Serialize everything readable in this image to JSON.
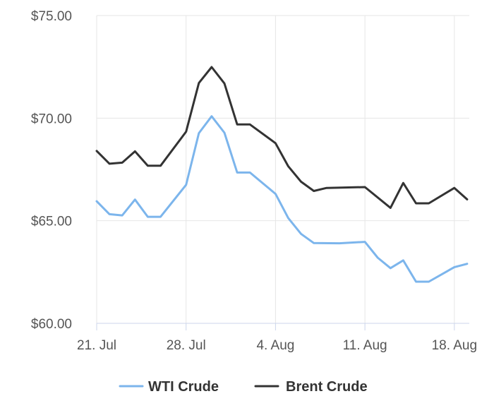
{
  "chart_data": {
    "type": "line",
    "title": "",
    "xlabel": "",
    "ylabel": "",
    "ylim": [
      60,
      75
    ],
    "y_ticks": [
      60,
      65,
      70,
      75
    ],
    "y_tick_labels": [
      "$60.00",
      "$65.00",
      "$70.00",
      "$75.00"
    ],
    "x_ticks": [
      "2023-07-21",
      "2023-07-28",
      "2023-08-04",
      "2023-08-11",
      "2023-08-18"
    ],
    "x_tick_labels": [
      "21. Jul",
      "28. Jul",
      "4. Aug",
      "11. Aug",
      "18. Aug"
    ],
    "grid": true,
    "legend_position": "bottom",
    "series": [
      {
        "name": "WTI Crude",
        "color": "#7cb5ec",
        "points": [
          {
            "x": "2023-07-21",
            "y": 65.95
          },
          {
            "x": "2023-07-22",
            "y": 65.32
          },
          {
            "x": "2023-07-23",
            "y": 65.26
          },
          {
            "x": "2023-07-24",
            "y": 66.03
          },
          {
            "x": "2023-07-25",
            "y": 65.19
          },
          {
            "x": "2023-07-26",
            "y": 65.19
          },
          {
            "x": "2023-07-28",
            "y": 66.75
          },
          {
            "x": "2023-07-29",
            "y": 69.27
          },
          {
            "x": "2023-07-30",
            "y": 70.09
          },
          {
            "x": "2023-07-31",
            "y": 69.29
          },
          {
            "x": "2023-08-01",
            "y": 67.35
          },
          {
            "x": "2023-08-02",
            "y": 67.35
          },
          {
            "x": "2023-08-04",
            "y": 66.31
          },
          {
            "x": "2023-08-05",
            "y": 65.13
          },
          {
            "x": "2023-08-06",
            "y": 64.36
          },
          {
            "x": "2023-08-07",
            "y": 63.91
          },
          {
            "x": "2023-08-09",
            "y": 63.9
          },
          {
            "x": "2023-08-11",
            "y": 63.97
          },
          {
            "x": "2023-08-12",
            "y": 63.2
          },
          {
            "x": "2023-08-13",
            "y": 62.69
          },
          {
            "x": "2023-08-14",
            "y": 63.07
          },
          {
            "x": "2023-08-15",
            "y": 62.03
          },
          {
            "x": "2023-08-16",
            "y": 62.03
          },
          {
            "x": "2023-08-18",
            "y": 62.74
          },
          {
            "x": "2023-08-19",
            "y": 62.9
          }
        ]
      },
      {
        "name": "Brent Crude",
        "color": "#333333",
        "points": [
          {
            "x": "2023-07-21",
            "y": 68.4
          },
          {
            "x": "2023-07-22",
            "y": 67.78
          },
          {
            "x": "2023-07-23",
            "y": 67.83
          },
          {
            "x": "2023-07-24",
            "y": 68.38
          },
          {
            "x": "2023-07-25",
            "y": 67.68
          },
          {
            "x": "2023-07-26",
            "y": 67.68
          },
          {
            "x": "2023-07-28",
            "y": 69.34
          },
          {
            "x": "2023-07-29",
            "y": 71.71
          },
          {
            "x": "2023-07-30",
            "y": 72.49
          },
          {
            "x": "2023-07-31",
            "y": 71.69
          },
          {
            "x": "2023-08-01",
            "y": 69.69
          },
          {
            "x": "2023-08-02",
            "y": 69.69
          },
          {
            "x": "2023-08-04",
            "y": 68.78
          },
          {
            "x": "2023-08-05",
            "y": 67.65
          },
          {
            "x": "2023-08-06",
            "y": 66.9
          },
          {
            "x": "2023-08-07",
            "y": 66.45
          },
          {
            "x": "2023-08-08",
            "y": 66.6
          },
          {
            "x": "2023-08-11",
            "y": 66.64
          },
          {
            "x": "2023-08-13",
            "y": 65.63
          },
          {
            "x": "2023-08-14",
            "y": 66.84
          },
          {
            "x": "2023-08-15",
            "y": 65.85
          },
          {
            "x": "2023-08-16",
            "y": 65.85
          },
          {
            "x": "2023-08-18",
            "y": 66.6
          },
          {
            "x": "2023-08-19",
            "y": 66.04
          }
        ]
      }
    ]
  }
}
